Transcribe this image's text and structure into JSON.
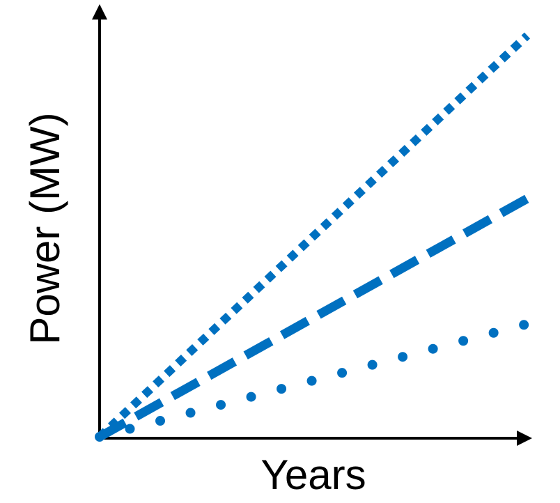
{
  "chart_data": {
    "type": "line",
    "x_label": "Years",
    "y_label": "Power (MW)",
    "x": [
      0,
      100
    ],
    "xlim": [
      0,
      100
    ],
    "ylim": [
      0,
      100
    ],
    "series": [
      {
        "color": "#0070c0",
        "style": "square-dot",
        "values": [
          0,
          96
        ]
      },
      {
        "color": "#0070c0",
        "style": "dash",
        "values": [
          0,
          57
        ]
      },
      {
        "color": "#0070c0",
        "style": "round-dot",
        "values": [
          0,
          27
        ]
      }
    ]
  }
}
